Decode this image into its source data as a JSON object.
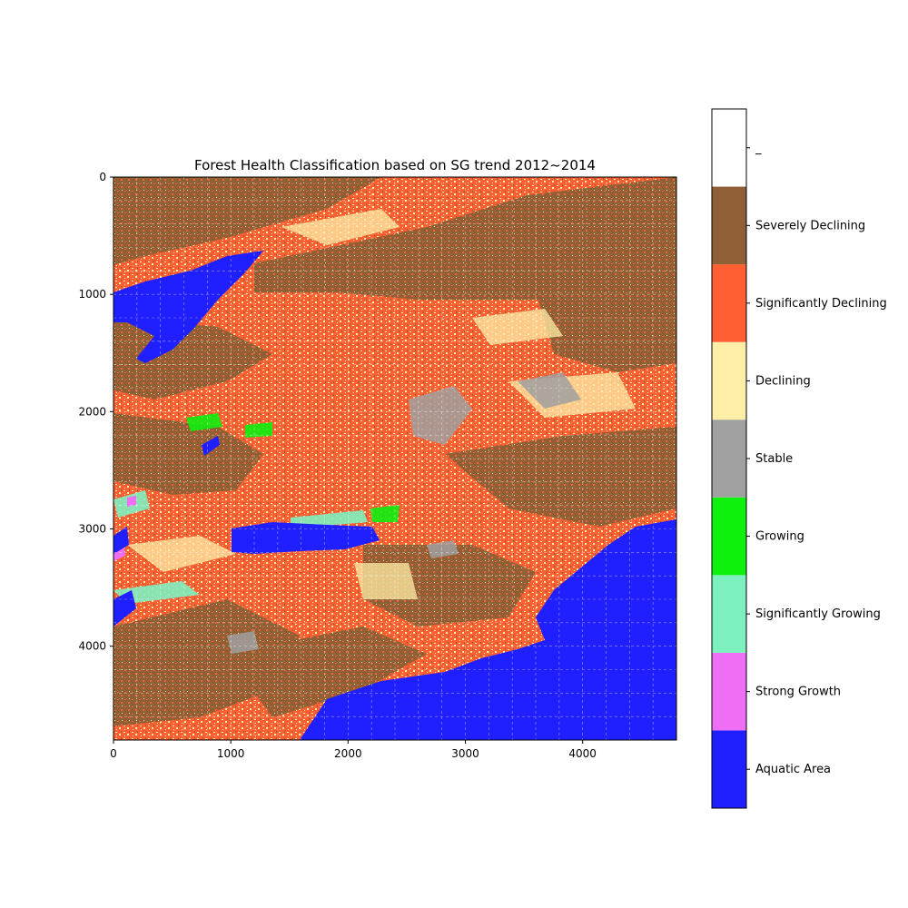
{
  "chart_data": {
    "type": "heatmap",
    "title": "Forest Health Classification based on SG trend 2012~2014",
    "xlim": [
      0,
      4800
    ],
    "ylim": [
      4800,
      0
    ],
    "y_axis_inverted": true,
    "grid": true,
    "x_ticks": [
      0,
      1000,
      2000,
      3000,
      4000
    ],
    "y_ticks": [
      0,
      1000,
      2000,
      3000,
      4000
    ],
    "x_tick_labels": [
      "0",
      "1000",
      "2000",
      "3000",
      "4000"
    ],
    "y_tick_labels": [
      "0",
      "1000",
      "2000",
      "3000",
      "4000"
    ],
    "colorbar": {
      "placement": "right",
      "classes": [
        {
          "label": "Aquatic Area",
          "color": "#1f1fff"
        },
        {
          "label": "Strong Growth",
          "color": "#ee6ff5"
        },
        {
          "label": "Significantly Growing",
          "color": "#7ef0c0"
        },
        {
          "label": "Growing",
          "color": "#0ef00e"
        },
        {
          "label": "Stable",
          "color": "#a0a0a0"
        },
        {
          "label": "Declining",
          "color": "#ffeea8"
        },
        {
          "label": "Significantly Declining",
          "color": "#ff5f33"
        },
        {
          "label": "Severely Declining",
          "color": "#8f6035"
        },
        {
          "label": "_",
          "color": "#ffffff"
        }
      ]
    }
  }
}
